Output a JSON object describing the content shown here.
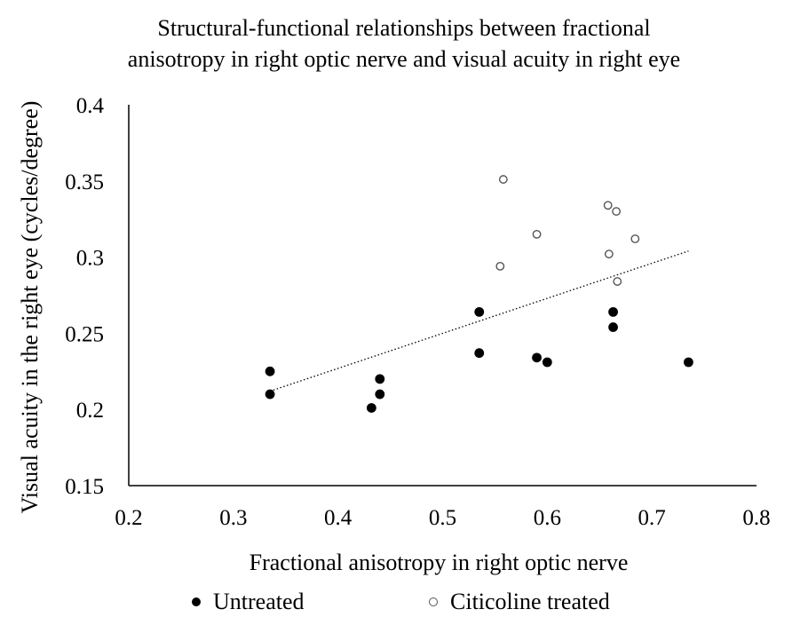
{
  "chart_data": {
    "type": "scatter",
    "title": "Structural-functional relationships between fractional anisotropy in right optic nerve and visual acuity in right eye",
    "title_lines": [
      "Structural-functional relationships between fractional",
      "anisotropy in right optic nerve and visual acuity in right eye"
    ],
    "xlabel": "Fractional anisotropy in right optic nerve",
    "ylabel": "Visual acuity in the right eye (cycles/degree)",
    "xlim": [
      0.2,
      0.8
    ],
    "ylim": [
      0.15,
      0.4
    ],
    "x_ticks": [
      "0.2",
      "0.3",
      "0.4",
      "0.5",
      "0.6",
      "0.7",
      "0.8"
    ],
    "y_ticks": [
      "0.15",
      "0.2",
      "0.25",
      "0.3",
      "0.35",
      "0.4"
    ],
    "grid": false,
    "legend_position": "bottom",
    "series": [
      {
        "name": "Untreated",
        "marker": "filled-circle",
        "color": "#000000",
        "points": [
          {
            "x": 0.335,
            "y": 0.225
          },
          {
            "x": 0.335,
            "y": 0.21
          },
          {
            "x": 0.432,
            "y": 0.201
          },
          {
            "x": 0.44,
            "y": 0.22
          },
          {
            "x": 0.44,
            "y": 0.21
          },
          {
            "x": 0.535,
            "y": 0.264
          },
          {
            "x": 0.535,
            "y": 0.237
          },
          {
            "x": 0.59,
            "y": 0.234
          },
          {
            "x": 0.6,
            "y": 0.231
          },
          {
            "x": 0.663,
            "y": 0.264
          },
          {
            "x": 0.663,
            "y": 0.254
          },
          {
            "x": 0.735,
            "y": 0.231
          }
        ]
      },
      {
        "name": "Citicoline treated",
        "marker": "open-circle",
        "color": "#000000",
        "points": [
          {
            "x": 0.558,
            "y": 0.351
          },
          {
            "x": 0.555,
            "y": 0.294
          },
          {
            "x": 0.59,
            "y": 0.315
          },
          {
            "x": 0.658,
            "y": 0.334
          },
          {
            "x": 0.666,
            "y": 0.33
          },
          {
            "x": 0.659,
            "y": 0.302
          },
          {
            "x": 0.684,
            "y": 0.312
          },
          {
            "x": 0.667,
            "y": 0.284
          }
        ]
      }
    ],
    "trendline": {
      "style": "dotted",
      "color": "#000000",
      "x_start": 0.335,
      "y_start": 0.212,
      "x_end": 0.735,
      "y_end": 0.304
    }
  }
}
